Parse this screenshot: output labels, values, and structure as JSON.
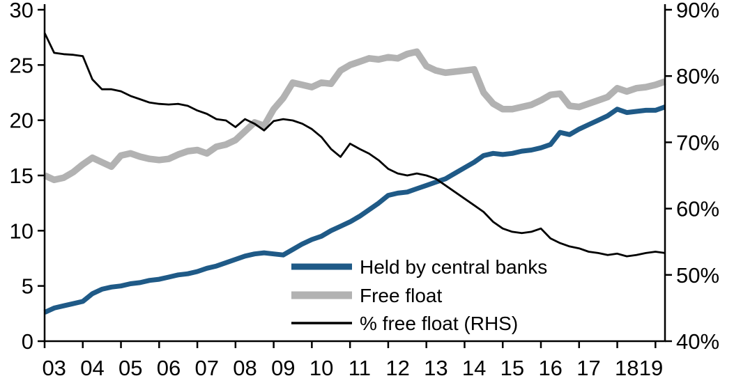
{
  "chart_data": {
    "type": "line",
    "title": "",
    "grid": false,
    "legend_position": "inside-bottom-center",
    "x_domain": [
      2003,
      2019.25
    ],
    "left_axis": {
      "min": 0,
      "max": 30,
      "ticks": [
        0,
        5,
        10,
        15,
        20,
        25,
        30
      ],
      "labels": [
        "0",
        "5",
        "10",
        "15",
        "20",
        "25",
        "30"
      ]
    },
    "right_axis": {
      "min": 40,
      "max": 90,
      "ticks": [
        40,
        50,
        60,
        70,
        80,
        90
      ],
      "labels": [
        "40%",
        "50%",
        "60%",
        "70%",
        "80%",
        "90%"
      ]
    },
    "x_tick_years": [
      2003,
      2004,
      2005,
      2006,
      2007,
      2008,
      2009,
      2010,
      2011,
      2012,
      2013,
      2014,
      2015,
      2016,
      2017,
      2018,
      2019
    ],
    "x_labels": [
      "03",
      "04",
      "05",
      "06",
      "07",
      "08",
      "09",
      "10",
      "11",
      "12",
      "13",
      "14",
      "15",
      "16",
      "17",
      "18",
      "19"
    ],
    "x": [
      2003,
      2003.25,
      2003.5,
      2003.75,
      2004,
      2004.25,
      2004.5,
      2004.75,
      2005,
      2005.25,
      2005.5,
      2005.75,
      2006,
      2006.25,
      2006.5,
      2006.75,
      2007,
      2007.25,
      2007.5,
      2007.75,
      2008,
      2008.25,
      2008.5,
      2008.75,
      2009,
      2009.25,
      2009.5,
      2009.75,
      2010,
      2010.25,
      2010.5,
      2010.75,
      2011,
      2011.25,
      2011.5,
      2011.75,
      2012,
      2012.25,
      2012.5,
      2012.75,
      2013,
      2013.25,
      2013.5,
      2013.75,
      2014,
      2014.25,
      2014.5,
      2014.75,
      2015,
      2015.25,
      2015.5,
      2015.75,
      2016,
      2016.25,
      2016.5,
      2016.75,
      2017,
      2017.25,
      2017.5,
      2017.75,
      2018,
      2018.25,
      2018.5,
      2018.75,
      2019,
      2019.25
    ],
    "series": [
      {
        "name": "Held by central banks",
        "axis": "left",
        "color": "#1f5a87",
        "width": 7,
        "values": [
          2.6,
          3.0,
          3.2,
          3.4,
          3.6,
          4.3,
          4.7,
          4.9,
          5.0,
          5.2,
          5.3,
          5.5,
          5.6,
          5.8,
          6.0,
          6.1,
          6.3,
          6.6,
          6.8,
          7.1,
          7.4,
          7.7,
          7.9,
          8.0,
          7.9,
          7.8,
          8.3,
          8.8,
          9.2,
          9.5,
          10.0,
          10.4,
          10.8,
          11.3,
          11.9,
          12.5,
          13.2,
          13.4,
          13.5,
          13.8,
          14.1,
          14.4,
          14.7,
          15.2,
          15.7,
          16.2,
          16.8,
          17.0,
          16.9,
          17.0,
          17.2,
          17.3,
          17.5,
          17.8,
          18.9,
          18.7,
          19.2,
          19.6,
          20.0,
          20.4,
          21.0,
          20.7,
          20.8,
          20.9,
          20.9,
          21.2
        ]
      },
      {
        "name": "Free float",
        "axis": "left",
        "color": "#b2b2b2",
        "width": 9.5,
        "values": [
          15.0,
          14.6,
          14.8,
          15.3,
          16.0,
          16.6,
          16.2,
          15.8,
          16.8,
          17.0,
          16.7,
          16.5,
          16.4,
          16.5,
          16.9,
          17.2,
          17.3,
          17.0,
          17.6,
          17.8,
          18.2,
          19.0,
          19.8,
          19.5,
          21.0,
          22.0,
          23.4,
          23.2,
          23.0,
          23.4,
          23.3,
          24.5,
          25.0,
          25.3,
          25.6,
          25.5,
          25.7,
          25.6,
          26.0,
          26.2,
          24.9,
          24.5,
          24.3,
          24.4,
          24.5,
          24.6,
          22.5,
          21.5,
          21.0,
          21.0,
          21.2,
          21.4,
          21.8,
          22.3,
          22.4,
          21.3,
          21.2,
          21.5,
          21.8,
          22.1,
          22.9,
          22.6,
          22.9,
          23.0,
          23.2,
          23.5
        ]
      },
      {
        "name": "% free float (RHS)",
        "axis": "right",
        "color": "#000000",
        "width": 2.8,
        "values": [
          86.5,
          83.5,
          83.3,
          83.2,
          83.0,
          79.5,
          78.0,
          78.0,
          77.7,
          77.0,
          76.5,
          76.0,
          75.8,
          75.7,
          75.8,
          75.5,
          74.8,
          74.3,
          73.5,
          73.3,
          72.3,
          73.5,
          72.8,
          71.8,
          73.2,
          73.5,
          73.3,
          72.8,
          72.0,
          70.8,
          69.0,
          67.8,
          69.8,
          69.0,
          68.3,
          67.3,
          66.0,
          65.3,
          65.0,
          65.3,
          65.0,
          64.5,
          63.5,
          62.5,
          61.5,
          60.5,
          59.5,
          58.0,
          57.0,
          56.5,
          56.3,
          56.5,
          57.0,
          55.5,
          54.8,
          54.3,
          54.0,
          53.5,
          53.3,
          53.0,
          53.2,
          52.8,
          53.0,
          53.3,
          53.5,
          53.3
        ]
      }
    ],
    "legend": [
      {
        "label": "Held by central banks",
        "color": "#1f5a87",
        "width": 9
      },
      {
        "label": "Free float",
        "color": "#b2b2b2",
        "width": 11
      },
      {
        "label": "% free float (RHS)",
        "color": "#000000",
        "width": 3.5
      }
    ],
    "axis_color": "#000000"
  }
}
